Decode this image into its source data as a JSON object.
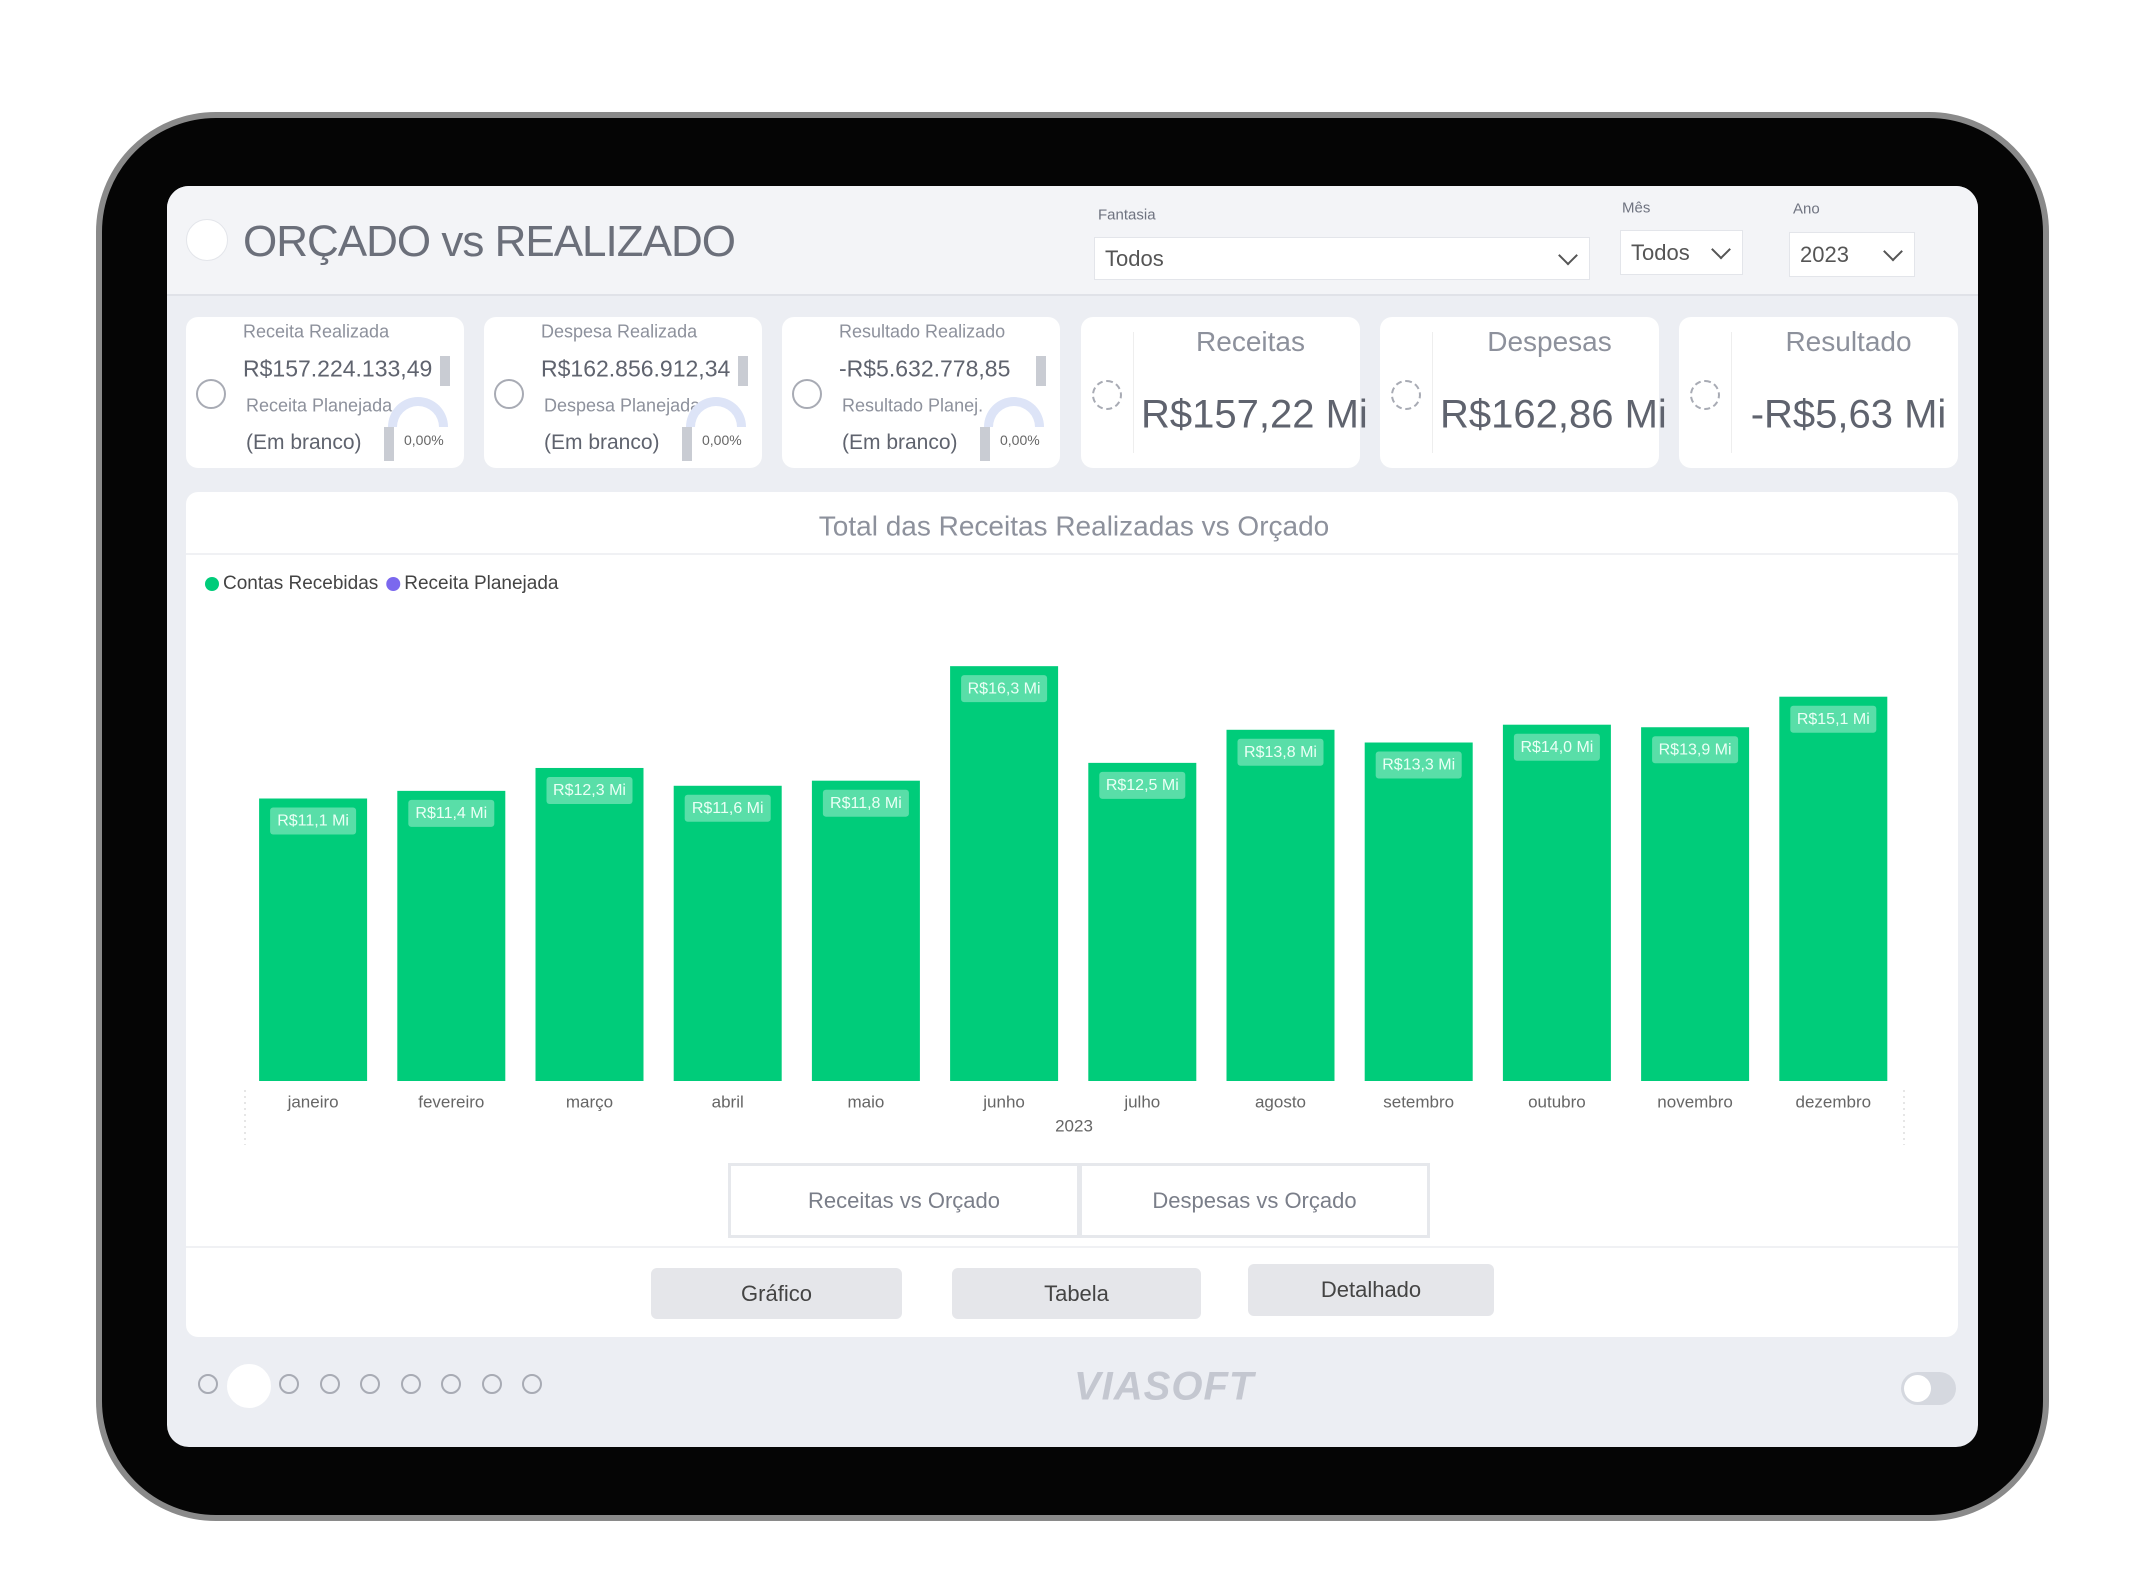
{
  "header": {
    "title": "ORÇADO vs REALIZADO",
    "filters": [
      {
        "label": "Fantasia",
        "value": "Todos"
      },
      {
        "label": "Mês",
        "value": "Todos"
      },
      {
        "label": "Ano",
        "value": "2023"
      }
    ]
  },
  "kpis": [
    {
      "label": "Receita Realizada",
      "value": "R$157.224.133,49",
      "sub_label": "Receita Planejada",
      "sub_value": "(Em branco)",
      "gauge": "0,00%"
    },
    {
      "label": "Despesa Realizada",
      "value": "R$162.856.912,34",
      "sub_label": "Despesa Planejada",
      "sub_value": "(Em branco)",
      "gauge": "0,00%"
    },
    {
      "label": "Resultado Realizado",
      "value": "-R$5.632.778,85",
      "sub_label": "Resultado Planej.",
      "sub_value": "(Em branco)",
      "gauge": "0,00%"
    }
  ],
  "totals": [
    {
      "label": "Receitas",
      "value": "R$157,22 Mi"
    },
    {
      "label": "Despesas",
      "value": "R$162,86 Mi"
    },
    {
      "label": "Resultado",
      "value": "-R$5,63 Mi"
    }
  ],
  "chart_data": {
    "type": "bar",
    "title": "Total das Receitas Realizadas vs Orçado",
    "x_label": "2023",
    "categories": [
      "janeiro",
      "fevereiro",
      "março",
      "abril",
      "maio",
      "junho",
      "julho",
      "agosto",
      "setembro",
      "outubro",
      "novembro",
      "dezembro"
    ],
    "series": [
      {
        "name": "Contas Recebidas",
        "color": "#00cc7a",
        "values": [
          11.1,
          11.4,
          12.3,
          11.6,
          11.8,
          16.3,
          12.5,
          13.8,
          13.3,
          14.0,
          13.9,
          15.1
        ],
        "value_labels": [
          "R$11,1 Mi",
          "R$11,4 Mi",
          "R$12,3 Mi",
          "R$11,6 Mi",
          "R$11,8 Mi",
          "R$16,3 Mi",
          "R$12,5 Mi",
          "R$13,8 Mi",
          "R$13,3 Mi",
          "R$14,0 Mi",
          "R$13,9 Mi",
          "R$15,1 Mi"
        ]
      },
      {
        "name": "Receita Planejada",
        "color": "#7b68ee",
        "values": [
          null,
          null,
          null,
          null,
          null,
          null,
          null,
          null,
          null,
          null,
          null,
          null
        ]
      }
    ],
    "ylim": [
      0,
      20
    ],
    "legend": "top-left"
  },
  "tabs": [
    "Receitas vs Orçado",
    "Despesas vs Orçado"
  ],
  "buttons": [
    "Gráfico",
    "Tabela",
    "Detalhado"
  ],
  "footer": {
    "brand": "VIASOFT"
  }
}
